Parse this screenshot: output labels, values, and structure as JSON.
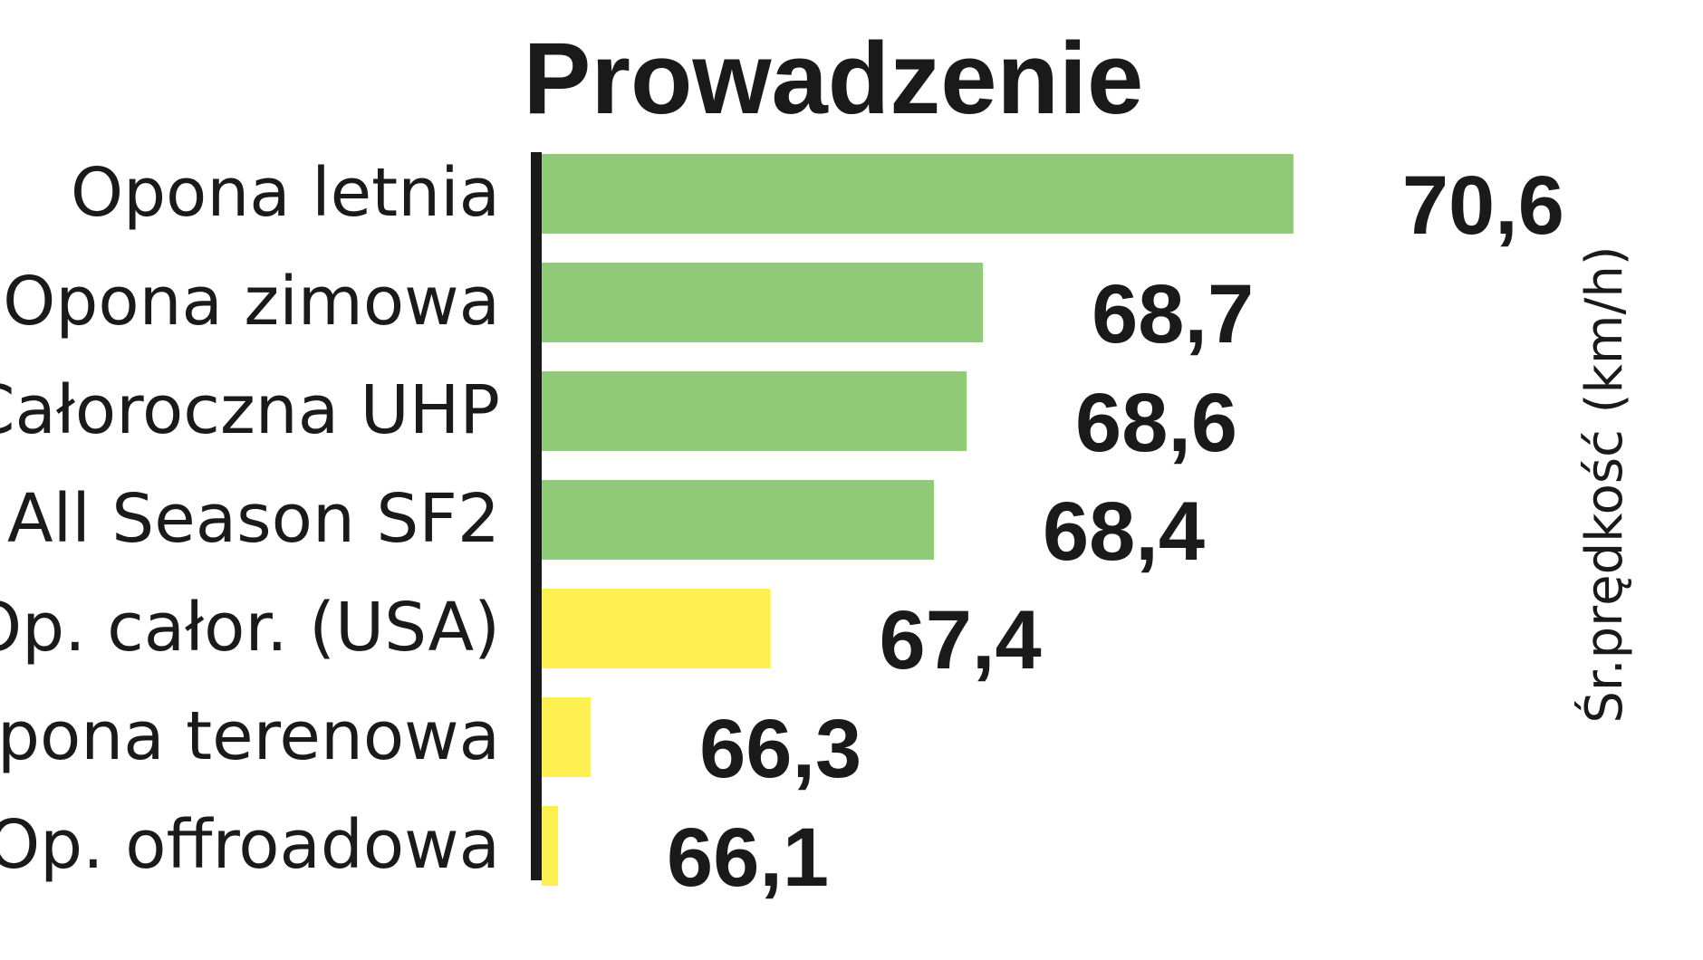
{
  "chart_data": {
    "type": "bar",
    "orientation": "horizontal",
    "title": "Prowadzenie",
    "ylabel": "Śr.prędkość (km/h)",
    "categories": [
      "Opona letnia",
      "Opona zimowa",
      "Całoroczna UHP",
      "All Season SF2",
      "Op. całor. (USA)",
      "Opona terenowa",
      "Op. offroadowa"
    ],
    "values": [
      70.6,
      68.7,
      68.6,
      68.4,
      67.4,
      66.3,
      66.1
    ],
    "value_labels": [
      "70,6",
      "68,7",
      "68,6",
      "68,4",
      "67,4",
      "66,3",
      "66,1"
    ],
    "bar_colors": [
      "#90c977",
      "#90c977",
      "#90c977",
      "#90c977",
      "#fdf050",
      "#fdf050",
      "#fdf050"
    ],
    "axis_color": "#1a1a1a",
    "xlim": [
      66,
      71
    ],
    "grid": false,
    "legend": "none"
  }
}
